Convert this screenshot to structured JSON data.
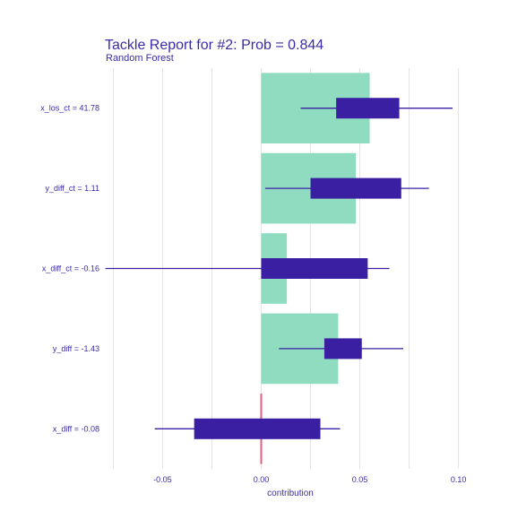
{
  "chart_data": {
    "type": "bar",
    "title": "Tackle Report for #2: Prob = 0.844",
    "subtitle": "Random Forest",
    "xlabel": "contribution",
    "xlim": [
      -0.077,
      0.107
    ],
    "x_ticks": [
      -0.05,
      0.0,
      0.05,
      0.1
    ],
    "x_tick_labels": [
      "-0.05",
      "0.00",
      "0.05",
      "0.10"
    ],
    "baseline": 0.0,
    "categories": [
      "x_los_ct = 41.78",
      "y_diff_ct = 1.11",
      "x_diff_ct = -0.16",
      "y_diff = -1.43",
      "x_diff = -0.08"
    ],
    "contributions": [
      0.055,
      0.048,
      0.013,
      0.039,
      0.0
    ],
    "boxplots": [
      {
        "whisker_low": 0.02,
        "q1": 0.038,
        "q3": 0.07,
        "whisker_high": 0.097
      },
      {
        "whisker_low": 0.002,
        "q1": 0.025,
        "q3": 0.071,
        "whisker_high": 0.085
      },
      {
        "whisker_low": -0.079,
        "q1": 0.0,
        "q3": 0.054,
        "whisker_high": 0.065
      },
      {
        "whisker_low": 0.009,
        "q1": 0.032,
        "q3": 0.051,
        "whisker_high": 0.072
      },
      {
        "whisker_low": -0.054,
        "q1": -0.034,
        "q3": 0.03,
        "whisker_high": 0.04
      }
    ],
    "colors": {
      "bar": "#8fdcc0",
      "box": "#3a1fa3",
      "baseline": "#e0607e",
      "text": "#3a2ca8",
      "grid": "#e3e3e3"
    }
  }
}
